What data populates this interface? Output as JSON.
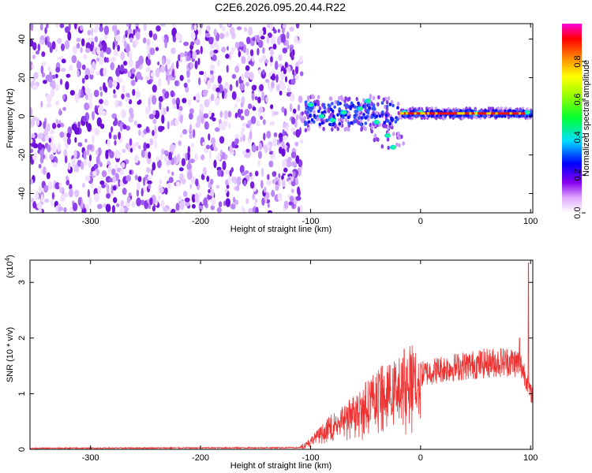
{
  "figure": {
    "title": "C2E6.2026.095.20.44.R22"
  },
  "colors": {
    "line": "#ee3333",
    "axis": "#000000",
    "noise": "#7a1fe0"
  },
  "chart_data": [
    {
      "type": "heatmap",
      "xlabel": "Height of straight line (km)",
      "ylabel": "Frequency (Hz)",
      "xlim": [
        -355,
        102
      ],
      "ylim": [
        -50,
        48
      ],
      "x_ticks": [
        -300,
        -200,
        -100,
        0,
        100
      ],
      "y_ticks": [
        -40,
        -20,
        0,
        20,
        40
      ],
      "colorbar": {
        "label": "Normalized spectral amplitude",
        "range": [
          0.0,
          1.0
        ],
        "ticks": [
          0.0,
          0.2,
          0.4,
          0.6,
          0.8
        ],
        "tick_labels": [
          "0.0",
          "0.2",
          "0.4",
          "0.6",
          "0.8"
        ]
      },
      "regions": [
        {
          "name": "noise",
          "x_range": [
            -355,
            -108
          ],
          "y_range": [
            -50,
            48
          ]
        },
        {
          "name": "echo",
          "x_range": [
            -108,
            102
          ],
          "center_freq": 1.5
        }
      ],
      "features": [
        {
          "x": -100,
          "y": 6
        },
        {
          "x": -90,
          "y": 0
        },
        {
          "x": -80,
          "y": -2
        },
        {
          "x": -70,
          "y": 2
        },
        {
          "x": -55,
          "y": 4
        },
        {
          "x": -48,
          "y": 8
        },
        {
          "x": -40,
          "y": -3
        },
        {
          "x": -30,
          "y": -10
        },
        {
          "x": -25,
          "y": -16
        },
        {
          "x": -15,
          "y": 2
        },
        {
          "x": 0,
          "y": 2
        },
        {
          "x": 50,
          "y": 1.5
        },
        {
          "x": 97,
          "y": 2
        }
      ]
    },
    {
      "type": "line",
      "xlabel": "Height of straight line (km)",
      "ylabel": "SNR (10 * v/v)",
      "multiplier_label": "(x10",
      "multiplier_exp": "4",
      "multiplier_close": ")",
      "xlim": [
        -355,
        102
      ],
      "ylim": [
        0,
        3.4
      ],
      "x_ticks": [
        -300,
        -200,
        -100,
        0,
        100
      ],
      "y_ticks": [
        0,
        1,
        2,
        3
      ],
      "series": [
        {
          "envelope": [
            [
              -355,
              0.02
            ],
            [
              -110,
              0.03
            ],
            [
              -100,
              0.15
            ],
            [
              -90,
              0.3
            ],
            [
              -80,
              0.45
            ],
            [
              -70,
              0.55
            ],
            [
              -60,
              0.7
            ],
            [
              -50,
              0.85
            ],
            [
              -40,
              1.0
            ],
            [
              -30,
              1.05
            ],
            [
              -20,
              1.15
            ],
            [
              -10,
              1.3
            ],
            [
              0,
              1.35
            ],
            [
              20,
              1.45
            ],
            [
              40,
              1.5
            ],
            [
              60,
              1.55
            ],
            [
              80,
              1.58
            ],
            [
              90,
              1.55
            ],
            [
              96,
              1.3
            ],
            [
              100,
              1.0
            ]
          ],
          "peaks": [
            {
              "x": -45,
              "y": 1.25
            },
            {
              "x": -35,
              "y": 1.5
            },
            {
              "x": -25,
              "y": 1.45
            },
            {
              "x": -15,
              "y": 1.8
            },
            {
              "x": 90,
              "y": 2.0
            },
            {
              "x": 98,
              "y": 3.35
            }
          ]
        }
      ]
    }
  ]
}
